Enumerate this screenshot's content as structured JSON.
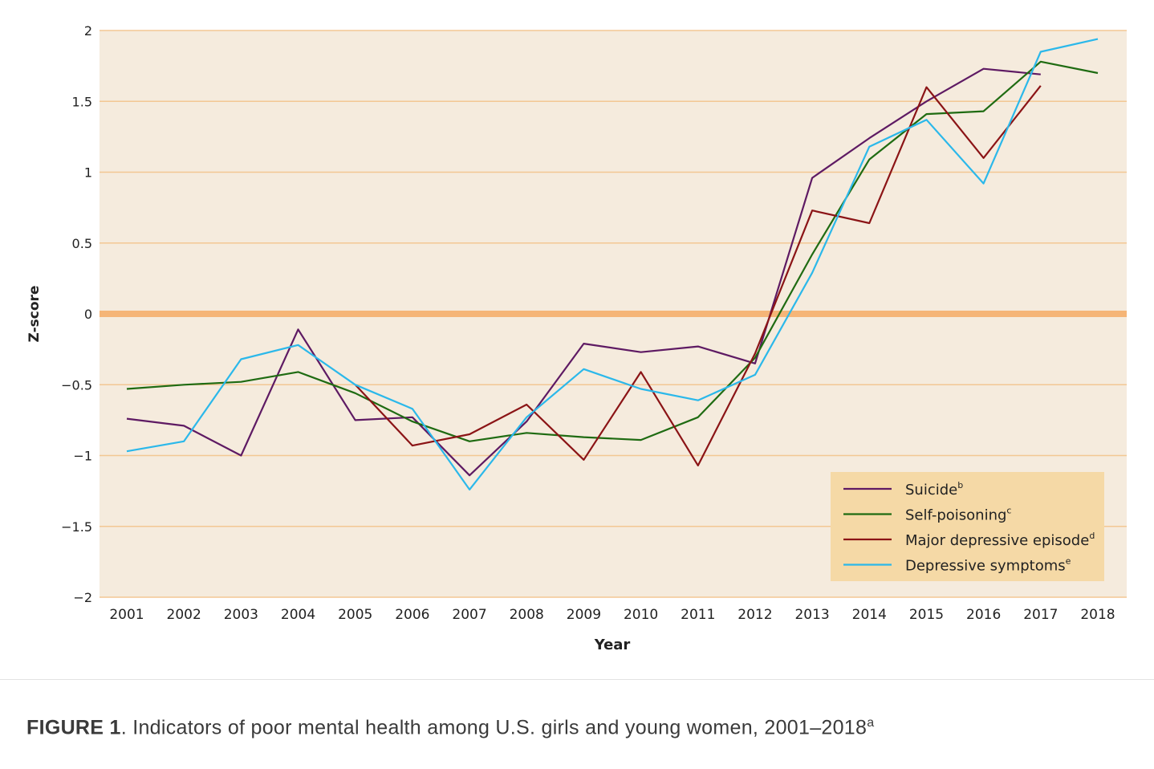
{
  "chart_data": {
    "type": "line",
    "title": "",
    "xlabel": "Year",
    "ylabel": "Z-score",
    "x": [
      2001,
      2002,
      2003,
      2004,
      2005,
      2006,
      2007,
      2008,
      2009,
      2010,
      2011,
      2012,
      2013,
      2014,
      2015,
      2016,
      2017,
      2018
    ],
    "ylim": [
      -2,
      2
    ],
    "yticks": [
      2,
      1.5,
      1,
      0.5,
      0,
      -0.5,
      -1,
      -1.5,
      -2
    ],
    "ytick_labels": [
      "2",
      "1.5",
      "1",
      "0.5",
      "0",
      "−0.5",
      "−1",
      "−1.5",
      "−2"
    ],
    "grid": true,
    "legend_position": "bottom-right",
    "series": [
      {
        "name": "Suicide",
        "sup": "b",
        "color": "#5e1a63",
        "values": [
          -0.74,
          -0.79,
          -1.0,
          -0.11,
          -0.75,
          -0.73,
          -1.14,
          -0.76,
          -0.21,
          -0.27,
          -0.23,
          -0.35,
          0.96,
          1.24,
          1.5,
          1.73,
          1.69,
          null
        ]
      },
      {
        "name": "Self-poisoning",
        "sup": "c",
        "color": "#1f6b12",
        "values": [
          -0.53,
          -0.5,
          -0.48,
          -0.41,
          -0.56,
          -0.76,
          -0.9,
          -0.84,
          -0.87,
          -0.89,
          -0.73,
          -0.31,
          0.42,
          1.09,
          1.41,
          1.43,
          1.78,
          1.7
        ]
      },
      {
        "name": "Major depressive episode",
        "sup": "d",
        "color": "#8b1416",
        "values": [
          null,
          null,
          null,
          null,
          -0.5,
          -0.93,
          -0.85,
          -0.64,
          -1.03,
          -0.41,
          -1.07,
          -0.28,
          0.73,
          0.64,
          1.6,
          1.1,
          1.61,
          null
        ]
      },
      {
        "name": "Depressive symptoms",
        "sup": "e",
        "color": "#2bb8ea",
        "values": [
          -0.97,
          -0.9,
          -0.32,
          -0.22,
          -0.5,
          -0.67,
          -1.24,
          -0.73,
          -0.39,
          -0.53,
          -0.61,
          -0.43,
          0.29,
          1.18,
          1.37,
          0.92,
          1.85,
          1.94
        ]
      }
    ]
  },
  "caption": {
    "label": "FIGURE 1",
    "text": ". Indicators of poor mental health among U.S. girls and young women, 2001–2018",
    "sup": "a"
  },
  "colors": {
    "plot_bg": "#f5ebdd",
    "grid": "#f3c793",
    "zero_line": "#f5b577",
    "legend_bg": "#f5d9a6"
  }
}
